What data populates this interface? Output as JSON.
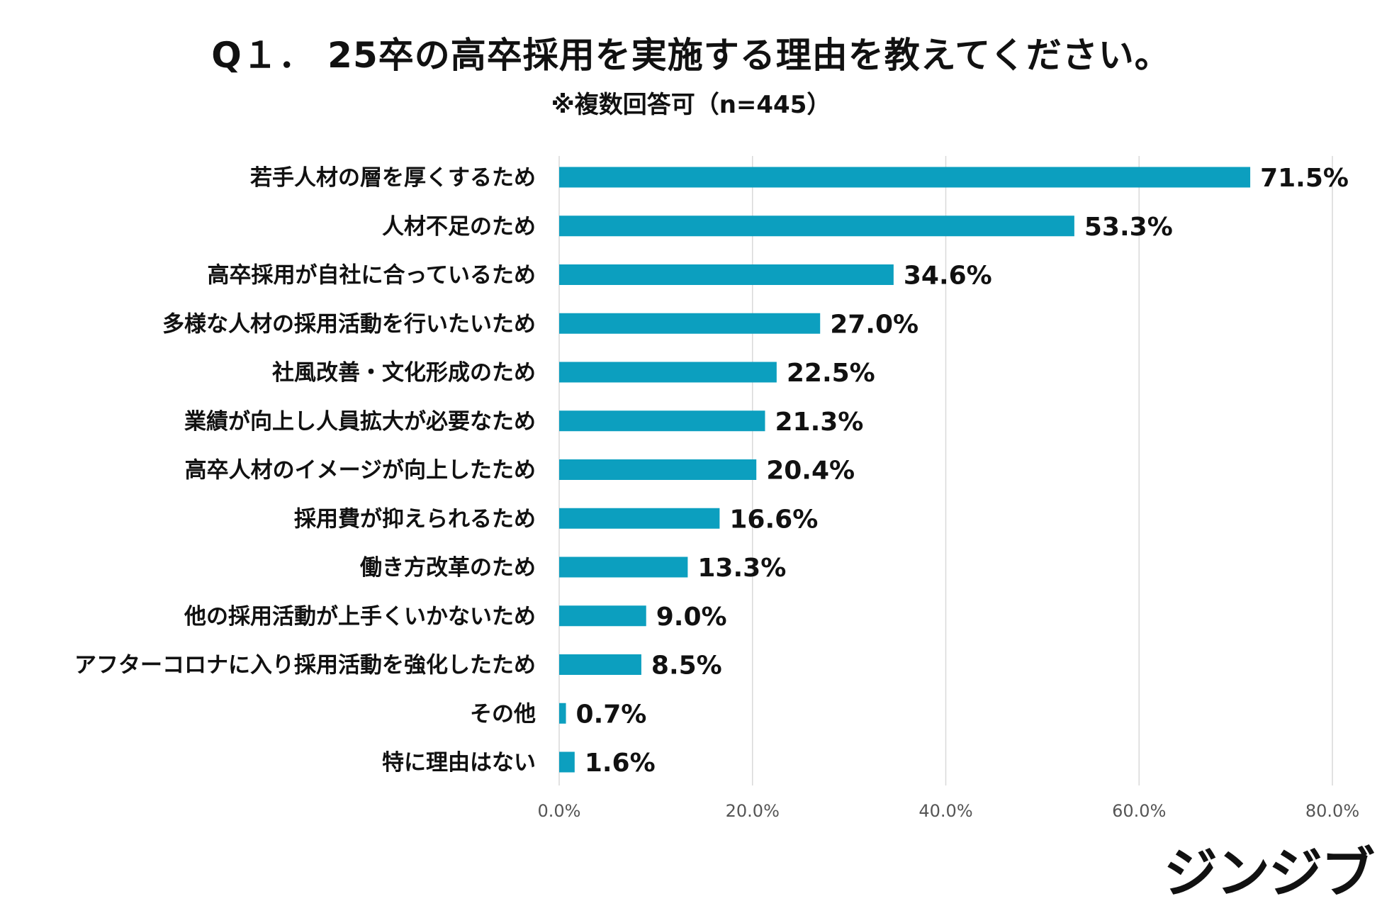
{
  "chart_data": {
    "type": "bar",
    "orientation": "horizontal",
    "title": "Q１． 25卒の高卒採用を実施する理由を教えてください。",
    "subtitle": "※複数回答可（n=445）",
    "categories": [
      "若手人材の層を厚くするため",
      "人材不足のため",
      "高卒採用が自社に合っているため",
      "多様な人材の採用活動を行いたいため",
      "社風改善・文化形成のため",
      "業績が向上し人員拡大が必要なため",
      "高卒人材のイメージが向上したため",
      "採用費が抑えられるため",
      "働き方改革のため",
      "他の採用活動が上手くいかないため",
      "アフターコロナに入り採用活動を強化したため",
      "その他",
      "特に理由はない"
    ],
    "values": [
      71.5,
      53.3,
      34.6,
      27.0,
      22.5,
      21.3,
      20.4,
      16.6,
      13.3,
      9.0,
      8.5,
      0.7,
      1.6
    ],
    "value_labels": [
      "71.5%",
      "53.3%",
      "34.6%",
      "27.0%",
      "22.5%",
      "21.3%",
      "20.4%",
      "16.6%",
      "13.3%",
      "9.0%",
      "8.5%",
      "0.7%",
      "1.6%"
    ],
    "xlim": [
      0,
      80
    ],
    "xticks": [
      0,
      20,
      40,
      60,
      80
    ],
    "xtick_labels": [
      "0.0%",
      "20.0%",
      "40.0%",
      "60.0%",
      "80.0%"
    ],
    "xlabel": "",
    "ylabel": "",
    "grid": true,
    "bar_color": "#0c9fbf",
    "grid_color": "#d9d9d9"
  },
  "brand": {
    "logo_text": "ジンジブ"
  }
}
